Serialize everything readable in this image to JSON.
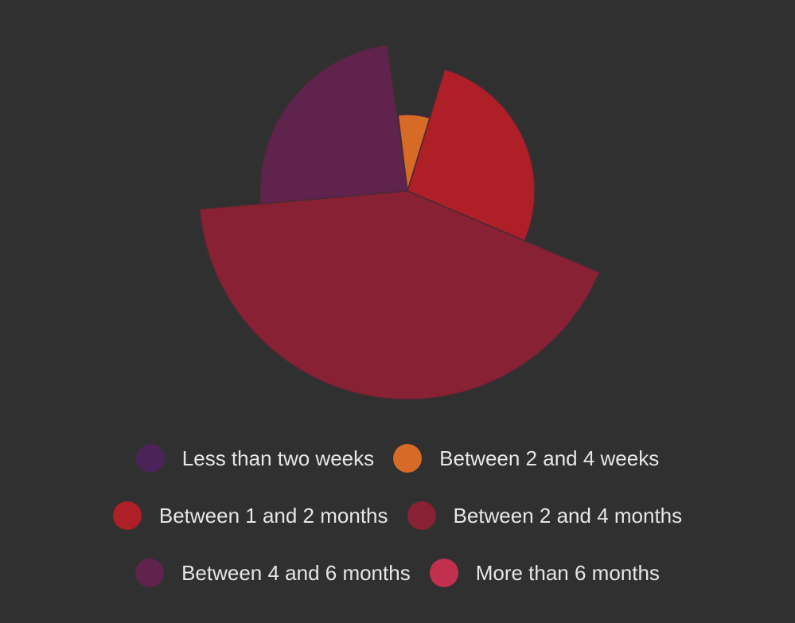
{
  "chart_data": {
    "type": "pie",
    "variant": "polar-area (variable radius)",
    "title": "",
    "background_color": "#303030",
    "slice_border_color": "#4a2a35",
    "series": [
      {
        "name": "Less than two weeks",
        "value": 1,
        "radius_value": 5,
        "color": "#4b2358"
      },
      {
        "name": "Between 2 and 4 weeks",
        "value": 24,
        "radius_value": 96,
        "color": "#d86a28"
      },
      {
        "name": "Between 1 and 2 months",
        "value": 96,
        "radius_value": 160,
        "color": "#ae1f27"
      },
      {
        "name": "Between 2 and 4 months",
        "value": 152,
        "radius_value": 262,
        "color": "#882134"
      },
      {
        "name": "Between 4 and 6 months",
        "value": 87,
        "radius_value": 185,
        "color": "#60234d"
      },
      {
        "name": "More than 6 months",
        "value": 0,
        "radius_value": 0,
        "color": "#c2304f"
      }
    ],
    "legend_position": "bottom",
    "legend": {
      "rows": [
        [
          "Less than two weeks",
          "Between 2 and 4 weeks"
        ],
        [
          "Between 1 and 2 months",
          "Between 2 and 4 months"
        ],
        [
          "Between 4 and 6 months",
          "More than 6 months"
        ]
      ]
    }
  }
}
